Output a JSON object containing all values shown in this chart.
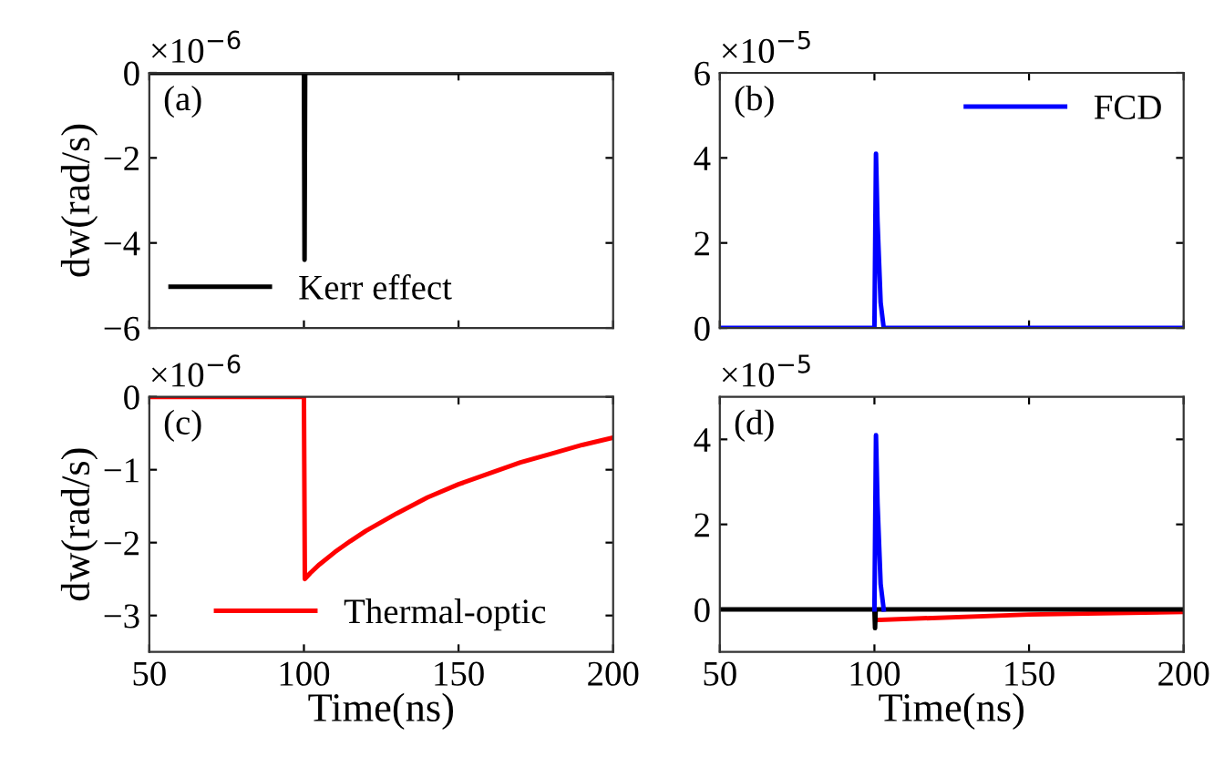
{
  "chart_data": [
    {
      "type": "line",
      "xlim": [
        50,
        200
      ],
      "xticks": [
        50,
        100,
        150,
        200
      ],
      "ylim": [
        -6,
        0
      ],
      "yticks": [
        -6,
        -4,
        -2,
        0
      ],
      "ylabel": "dw(rad/s)",
      "tick_labels": "y",
      "legend": "bottom left",
      "grid": false,
      "annotations": [
        "×10$^{−6}$",
        "(a)"
      ],
      "series": [
        {
          "name": "Kerr effect",
          "color": "#000000",
          "x": [
            50,
            100,
            100.2,
            100.4,
            200
          ],
          "values": [
            0,
            0,
            -4.4,
            0,
            0
          ]
        }
      ]
    },
    {
      "type": "line",
      "xlim": [
        50,
        200
      ],
      "xticks": [
        50,
        100,
        150,
        200
      ],
      "ylim": [
        0,
        6
      ],
      "yticks": [
        0,
        2,
        4,
        6
      ],
      "tick_labels": "y",
      "legend": "top right",
      "grid": false,
      "annotations": [
        "×10$^{−5}$",
        "(b)"
      ],
      "series": [
        {
          "name": "FCD",
          "color": "#0000ff",
          "x": [
            50,
            100,
            100.5,
            101,
            102,
            103,
            200
          ],
          "values": [
            0,
            0,
            4.1,
            2.5,
            0.6,
            0,
            0
          ]
        }
      ]
    },
    {
      "type": "line",
      "xlim": [
        50,
        200
      ],
      "xticks": [
        50,
        100,
        150,
        200
      ],
      "ylim": [
        -3.5,
        0
      ],
      "yticks": [
        -3,
        -2,
        -1,
        0
      ],
      "ylabel": "dw(rad/s)",
      "xlabel": "Time(ns)",
      "legend": "bottom",
      "grid": false,
      "annotations": [
        "×10$^{−6}$",
        "(c)"
      ],
      "series": [
        {
          "name": "Thermal-optic",
          "color": "#ff0000",
          "x": [
            50,
            100,
            100.3,
            102,
            105,
            110,
            115,
            120,
            130,
            140,
            150,
            160,
            170,
            180,
            190,
            200
          ],
          "values": [
            0,
            0,
            -2.5,
            -2.42,
            -2.3,
            -2.13,
            -1.98,
            -1.84,
            -1.6,
            -1.38,
            -1.2,
            -1.05,
            -0.9,
            -0.78,
            -0.66,
            -0.56
          ]
        }
      ]
    },
    {
      "type": "line",
      "xlim": [
        50,
        200
      ],
      "xticks": [
        50,
        100,
        150,
        200
      ],
      "ylim": [
        -1,
        5
      ],
      "yticks": [
        0,
        2,
        4
      ],
      "xlabel": "Time(ns)",
      "grid": false,
      "annotations": [
        "×10$^{−5}$",
        "(d)"
      ],
      "series": [
        {
          "color": "#ff0000",
          "x": [
            100.3,
            150,
            200
          ],
          "values": [
            -0.25,
            -0.12,
            -0.06
          ]
        },
        {
          "color": "#000000",
          "x": [
            50,
            100,
            100.2,
            100.4,
            200
          ],
          "values": [
            0,
            0,
            -0.44,
            0,
            0
          ]
        },
        {
          "color": "#0000ff",
          "x": [
            100,
            100.5,
            101,
            102,
            103
          ],
          "values": [
            0,
            4.1,
            2.5,
            0.6,
            0
          ]
        }
      ]
    }
  ]
}
